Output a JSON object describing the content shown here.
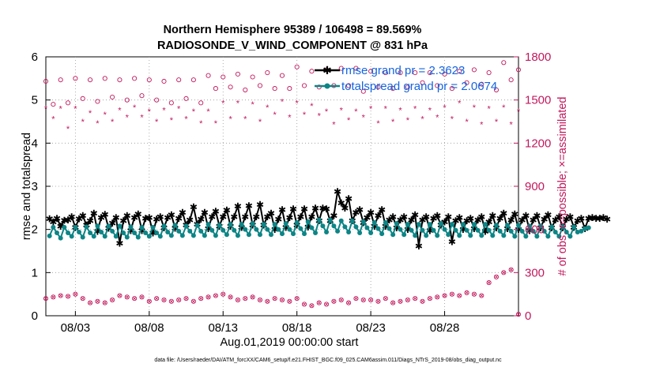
{
  "chart_data": {
    "type": "line",
    "title": "Northern Hemisphere 95389 / 106498 = 89.569%",
    "subtitle": "RADIOSONDE_V_WIND_COMPONENT @ 831 hPa",
    "xlabel": "Aug.01,2019 00:00:00 start",
    "ylabel": "rmse and totalspread",
    "ylabel_right": "# of obs: o=possible; ×=assimilated",
    "footnote": "data file: /Users/raeder/DAI/ATM_forcXX/CAM6_setup/f.e21.FHIST_BGC.f09_025.CAM6assim.011/Diags_NTrS_2019-08/obs_diag_output.nc",
    "xlim": [
      1,
      33
    ],
    "ylim": [
      0,
      6
    ],
    "ylim_right": [
      0,
      1800
    ],
    "x_ticks": [
      3,
      8,
      13,
      18,
      23,
      28
    ],
    "x_tick_labels": [
      "08/03",
      "08/08",
      "08/13",
      "08/18",
      "08/23",
      "08/28"
    ],
    "y_ticks": [
      0,
      1,
      2,
      3,
      4,
      5,
      6
    ],
    "y_tick_labels": [
      "0",
      "1",
      "2",
      "3",
      "4",
      "5",
      "6"
    ],
    "y_right_ticks": [
      0,
      300,
      600,
      900,
      1200,
      1500,
      1800
    ],
    "y_right_tick_labels": [
      "0",
      "300",
      "600",
      "900",
      "1200",
      "1500",
      "1800"
    ],
    "x_start": 1.25,
    "x_step": 0.25,
    "series": [
      {
        "name": "rmse grand pr = 2.3623",
        "color": "#000000",
        "values": [
          2.25,
          2.18,
          2.26,
          2.08,
          2.21,
          2.22,
          2.3,
          2.05,
          2.25,
          2.32,
          2.1,
          2.2,
          2.38,
          1.96,
          2.28,
          2.35,
          2.03,
          2.15,
          2.28,
          1.68,
          2.2,
          2.32,
          1.98,
          2.28,
          2.36,
          1.98,
          2.26,
          2.28,
          1.92,
          2.24,
          2.3,
          2.04,
          2.28,
          2.34,
          2.03,
          2.26,
          2.4,
          2.1,
          2.22,
          2.52,
          2.12,
          2.24,
          2.4,
          2.02,
          2.3,
          2.42,
          2.08,
          2.3,
          2.45,
          2.08,
          2.3,
          2.54,
          2.05,
          2.3,
          2.55,
          2.1,
          2.3,
          2.58,
          2.1,
          2.3,
          2.38,
          2.0,
          2.24,
          2.46,
          2.05,
          2.28,
          2.48,
          2.1,
          2.3,
          2.48,
          2.06,
          2.3,
          2.5,
          2.2,
          2.5,
          2.48,
          2.2,
          2.32,
          2.88,
          2.62,
          2.5,
          2.72,
          2.2,
          2.4,
          2.46,
          2.16,
          2.28,
          2.4,
          2.08,
          2.32,
          2.46,
          2.08,
          2.22,
          2.3,
          2.04,
          2.22,
          2.3,
          2.0,
          2.22,
          2.34,
          1.62,
          2.22,
          2.3,
          1.98,
          2.26,
          2.32,
          2.1,
          2.18,
          2.3,
          1.72,
          2.2,
          2.28,
          2.0,
          2.2,
          2.26,
          2.02,
          2.22,
          2.3,
          1.96,
          2.18,
          2.32,
          2.04,
          2.26,
          2.38,
          2.02,
          2.22,
          2.36,
          2.0,
          2.22,
          2.32,
          1.98,
          2.22,
          2.32,
          2.04,
          2.24,
          2.34,
          2.04,
          2.22,
          2.3,
          2.04,
          2.24,
          2.3,
          2.05,
          2.2,
          2.26,
          2.02,
          2.26,
          2.28,
          2.26,
          2.26,
          2.28,
          2.24
        ]
      },
      {
        "name": "totalspread grand pr = 2.0674",
        "color": "#0d8586",
        "values": [
          1.85,
          2.05,
          1.92,
          1.8,
          2.05,
          1.92,
          1.84,
          2.05,
          1.94,
          1.82,
          2.06,
          1.92,
          1.84,
          2.08,
          1.94,
          1.84,
          2.08,
          1.96,
          1.84,
          2.08,
          1.92,
          1.82,
          2.06,
          1.92,
          1.82,
          2.05,
          1.92,
          1.84,
          2.05,
          1.92,
          1.84,
          2.08,
          1.94,
          1.86,
          2.1,
          1.96,
          1.86,
          2.08,
          1.96,
          1.86,
          2.1,
          1.96,
          1.86,
          2.12,
          1.98,
          1.86,
          2.1,
          1.98,
          1.88,
          2.12,
          1.98,
          1.86,
          2.12,
          2.0,
          1.88,
          2.14,
          2.0,
          1.88,
          2.12,
          2.0,
          1.88,
          2.12,
          2.0,
          1.9,
          2.14,
          2.0,
          1.9,
          2.16,
          2.02,
          1.9,
          2.18,
          2.04,
          1.92,
          2.22,
          2.08,
          1.94,
          2.22,
          2.08,
          1.96,
          2.2,
          2.06,
          1.94,
          2.2,
          2.06,
          1.92,
          2.18,
          2.04,
          1.92,
          2.16,
          2.02,
          1.9,
          2.16,
          2.02,
          1.88,
          2.14,
          2.0,
          1.88,
          2.12,
          1.98,
          1.86,
          2.12,
          1.98,
          1.86,
          2.12,
          1.98,
          1.86,
          2.14,
          2.0,
          1.88,
          2.12,
          1.98,
          1.86,
          2.12,
          1.98,
          1.86,
          2.12,
          1.98,
          1.86,
          2.12,
          1.98,
          1.86,
          2.1,
          1.96,
          1.86,
          2.1,
          1.96,
          1.84,
          2.1,
          1.96,
          1.84,
          2.08,
          1.96,
          1.84,
          2.08,
          1.96,
          1.84,
          2.06,
          1.94,
          1.84,
          2.06,
          1.94,
          1.84,
          2.06,
          1.94,
          1.96,
          2.02,
          2.04
        ]
      }
    ],
    "obs_series": [
      {
        "name": "possible",
        "marker": "o",
        "axis": "right",
        "color": "#c2185b",
        "x": [
          1,
          1.5,
          2,
          2.5,
          3,
          3.5,
          4,
          4.5,
          5,
          5.5,
          6,
          6.5,
          7,
          7.5,
          8,
          8.5,
          9,
          9.5,
          10,
          10.5,
          11,
          11.5,
          12,
          12.5,
          13,
          13.5,
          14,
          14.5,
          15,
          15.5,
          16,
          16.5,
          17,
          17.5,
          18,
          18.5,
          19,
          19.5,
          20,
          20.5,
          21,
          21.5,
          22,
          22.5,
          23,
          23.5,
          24,
          24.5,
          25,
          25.5,
          26,
          26.5,
          27,
          27.5,
          28,
          28.5,
          29,
          29.5,
          30,
          30.5,
          31,
          31.5,
          32,
          32.5,
          33
        ],
        "values": [
          1630,
          1470,
          1640,
          1480,
          1650,
          1510,
          1640,
          1490,
          1650,
          1520,
          1640,
          1500,
          1650,
          1530,
          1640,
          1500,
          1630,
          1480,
          1640,
          1510,
          1640,
          1480,
          1670,
          1580,
          1660,
          1590,
          1680,
          1570,
          1660,
          1600,
          1690,
          1580,
          1670,
          1580,
          1730,
          1600,
          1700,
          1590,
          1710,
          1600,
          1720,
          1600,
          1720,
          1560,
          1700,
          1590,
          1690,
          1580,
          1690,
          1590,
          1690,
          1620,
          1690,
          1600,
          1680,
          1580,
          1700,
          1620,
          1710,
          1610,
          1690,
          1570,
          1760,
          1640,
          1710
        ],
        "assimilated_values": [
          1440,
          1370,
          1440,
          1300,
          1440,
          1350,
          1410,
          1340,
          1400,
          1350,
          1430,
          1380,
          1450,
          1380,
          1420,
          1350,
          1430,
          1360,
          1440,
          1370,
          1420,
          1340,
          1420,
          1340,
          1480,
          1370,
          1480,
          1370,
          1470,
          1350,
          1450,
          1400,
          1490,
          1380,
          1480,
          1400,
          1460,
          1390,
          1420,
          1330,
          1430,
          1360,
          1420,
          1380,
          1440,
          1340,
          1440,
          1350,
          1430,
          1360,
          1440,
          1370,
          1430,
          1380,
          1450,
          1370,
          1480,
          1350,
          1450,
          1330,
          1440,
          1350,
          1450,
          1330,
          1420
        ]
      },
      {
        "name": "assimilated (low)",
        "marker": "o/x",
        "axis": "right",
        "color": "#c2185b",
        "x": [
          1,
          1.5,
          2,
          2.5,
          3,
          3.5,
          4,
          4.5,
          5,
          5.5,
          6,
          6.5,
          7,
          7.5,
          8,
          8.5,
          9,
          9.5,
          10,
          10.5,
          11,
          11.5,
          12,
          12.5,
          13,
          13.5,
          14,
          14.5,
          15,
          15.5,
          16,
          16.5,
          17,
          17.5,
          18,
          18.5,
          19,
          19.5,
          20,
          20.5,
          21,
          21.5,
          22,
          22.5,
          23,
          23.5,
          24,
          24.5,
          25,
          25.5,
          26,
          26.5,
          27,
          27.5,
          28,
          28.5,
          29,
          29.5,
          30,
          30.5,
          31,
          31.5,
          32,
          32.5,
          33
        ],
        "values": [
          120,
          130,
          140,
          135,
          150,
          120,
          90,
          100,
          90,
          110,
          140,
          130,
          120,
          130,
          100,
          120,
          110,
          100,
          110,
          120,
          100,
          120,
          130,
          140,
          150,
          130,
          110,
          120,
          130,
          110,
          100,
          120,
          110,
          100,
          120,
          80,
          70,
          90,
          80,
          100,
          110,
          90,
          120,
          110,
          110,
          100,
          120,
          90,
          100,
          110,
          120,
          100,
          120,
          130,
          140,
          150,
          140,
          160,
          150,
          140,
          230,
          270,
          300,
          320,
          10
        ]
      }
    ],
    "legend": [
      {
        "label": "rmse grand pr = 2.3623",
        "color": "#000000",
        "marker": "*"
      },
      {
        "label": "totalspread grand pr = 2.0674",
        "color": "#0d8586",
        "marker": "o"
      }
    ],
    "legend_position": "top-right"
  }
}
